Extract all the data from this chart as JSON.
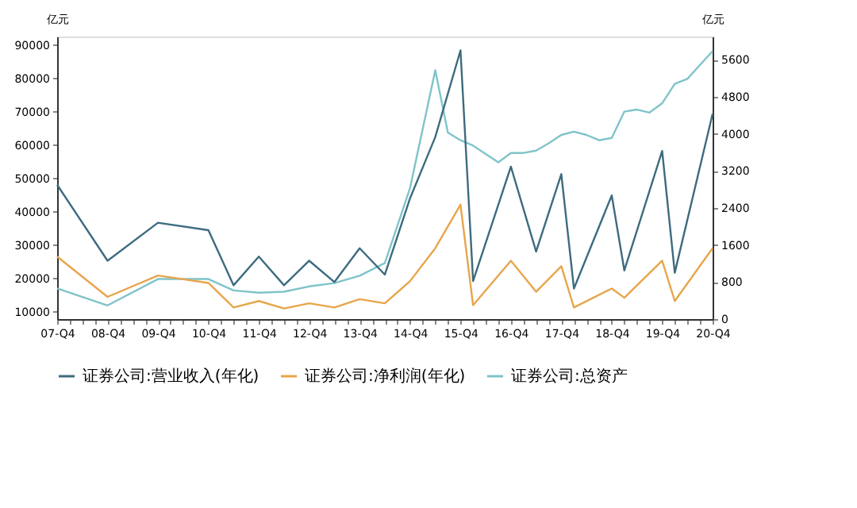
{
  "chart_data": {
    "type": "line",
    "categories": [
      "07-Q4",
      null,
      null,
      null,
      "08-Q4",
      null,
      null,
      null,
      "09-Q4",
      null,
      null,
      null,
      "10-Q4",
      null,
      null,
      null,
      "11-Q4",
      null,
      null,
      null,
      "12-Q4",
      null,
      null,
      null,
      "13-Q4",
      null,
      null,
      null,
      "14-Q4",
      null,
      null,
      null,
      "15-Q4",
      null,
      null,
      null,
      "16-Q4",
      null,
      null,
      null,
      "17-Q4",
      null,
      null,
      null,
      "18-Q4",
      null,
      null,
      null,
      "19-Q4",
      null,
      null,
      null,
      "20-Q4"
    ],
    "ylabel": "亿元",
    "y2label": "亿元",
    "series": [
      {
        "name": "证券公司:营业收入(年化)",
        "color": "#3d6b7f",
        "axis": "y2",
        "values": [
          2900,
          null,
          null,
          null,
          1260,
          null,
          null,
          null,
          2080,
          null,
          null,
          null,
          1920,
          null,
          730,
          null,
          1350,
          null,
          730,
          null,
          1260,
          null,
          800,
          null,
          1530,
          null,
          960,
          null,
          2610,
          null,
          3930,
          null,
          5800,
          820,
          null,
          null,
          3290,
          null,
          1460,
          null,
          3130,
          660,
          null,
          null,
          2670,
          1050,
          null,
          null,
          3630,
          1000,
          null,
          null,
          4430
        ]
      },
      {
        "name": "证券公司:净利润(年化)",
        "color": "#e8a54b",
        "axis": "y2",
        "values": [
          1350,
          null,
          null,
          null,
          480,
          null,
          null,
          null,
          940,
          null,
          null,
          null,
          780,
          null,
          250,
          null,
          390,
          null,
          230,
          null,
          340,
          null,
          250,
          null,
          430,
          null,
          340,
          null,
          820,
          null,
          1530,
          null,
          2470,
          300,
          null,
          null,
          1260,
          null,
          590,
          null,
          1140,
          250,
          null,
          null,
          660,
          460,
          null,
          null,
          1260,
          390,
          null,
          null,
          1530
        ]
      },
      {
        "name": "证券公司:总资产",
        "color": "#7fc4c9",
        "values": [
          17000,
          null,
          null,
          null,
          11900,
          null,
          null,
          null,
          19800,
          null,
          null,
          null,
          19800,
          null,
          16400,
          null,
          15700,
          null,
          16000,
          null,
          17600,
          null,
          18600,
          null,
          20800,
          null,
          24600,
          null,
          47100,
          null,
          82400,
          63700,
          61400,
          59800,
          null,
          54800,
          57600,
          57600,
          58300,
          60500,
          63000,
          64000,
          63000,
          61400,
          62100,
          70000,
          70600,
          69700,
          72500,
          78300,
          79800,
          84000,
          88100
        ]
      }
    ],
    "ylim": [
      7800,
      92500
    ],
    "yticks": [
      10000,
      20000,
      30000,
      40000,
      50000,
      60000,
      70000,
      80000,
      90000
    ],
    "y2lim": [
      0,
      6100
    ],
    "y2ticks": [
      0,
      800,
      1600,
      2400,
      3200,
      4000,
      4800,
      5600
    ],
    "legend": "bottom",
    "grid": false,
    "marker": "none",
    "line_style": "solid"
  }
}
